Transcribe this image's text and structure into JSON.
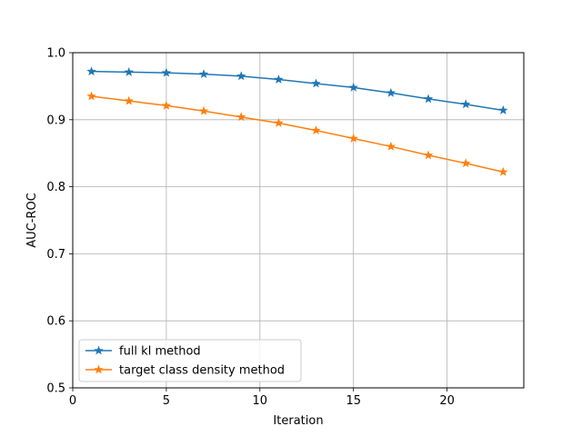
{
  "chart_data": {
    "type": "line",
    "title": "",
    "xlabel": "Iteration",
    "ylabel": "AUC-ROC",
    "xlim": [
      0,
      24.1
    ],
    "ylim": [
      0.5,
      1.0
    ],
    "xticks": [
      0,
      5,
      10,
      15,
      20
    ],
    "xtick_labels": [
      "0",
      "5",
      "10",
      "15",
      "20"
    ],
    "yticks": [
      0.5,
      0.6,
      0.7,
      0.8,
      0.9,
      1.0
    ],
    "ytick_labels": [
      "0.5",
      "0.6",
      "0.7",
      "0.8",
      "0.9",
      "1.0"
    ],
    "grid": true,
    "legend_position": "lower-left",
    "x": [
      1,
      3,
      5,
      7,
      9,
      11,
      13,
      15,
      17,
      19,
      21,
      23
    ],
    "series": [
      {
        "name": "full kl method",
        "color": "#1f77b4",
        "marker": "star",
        "values": [
          0.972,
          0.971,
          0.97,
          0.968,
          0.965,
          0.96,
          0.954,
          0.948,
          0.94,
          0.931,
          0.923,
          0.914
        ]
      },
      {
        "name": "target class density method",
        "color": "#ff7f0e",
        "marker": "star",
        "values": [
          0.935,
          0.928,
          0.921,
          0.913,
          0.904,
          0.895,
          0.884,
          0.872,
          0.86,
          0.847,
          0.835,
          0.822
        ]
      }
    ]
  }
}
